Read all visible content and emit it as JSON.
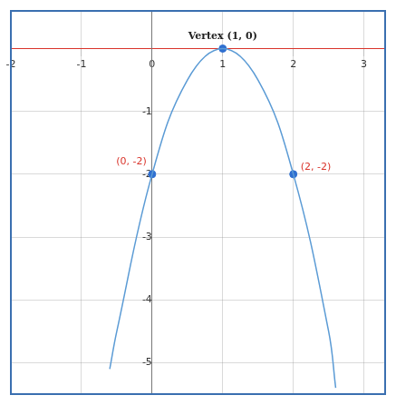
{
  "chart_data": {
    "type": "line",
    "x": [
      -0.6,
      -0.5,
      0,
      0.5,
      1,
      1.5,
      2,
      2.5,
      2.6
    ],
    "values": [
      -5.1,
      -4.5,
      -2,
      -0.5,
      0,
      -0.5,
      -2,
      -4.5,
      -5.4
    ],
    "color": "#5b9bd5",
    "xlim": [
      -2,
      3.3
    ],
    "ylim": [
      -5.5,
      0.6
    ],
    "xticks": [
      -2,
      -1,
      0,
      1,
      2,
      3
    ],
    "yticks": [
      -5,
      -4,
      -3,
      -2,
      -1
    ],
    "grid": true,
    "points": [
      {
        "x": 1,
        "y": 0,
        "label": "Vertex (1, 0)",
        "color": "#222222"
      },
      {
        "x": 0,
        "y": -2,
        "label": "(0, -2)",
        "color": "#d9342b"
      },
      {
        "x": 2,
        "y": -2,
        "label": "(2, -2)",
        "color": "#d9342b"
      }
    ]
  }
}
